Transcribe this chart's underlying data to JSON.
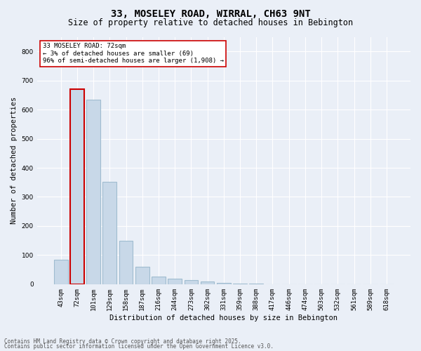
{
  "title_line1": "33, MOSELEY ROAD, WIRRAL, CH63 9NT",
  "title_line2": "Size of property relative to detached houses in Bebington",
  "xlabel": "Distribution of detached houses by size in Bebington",
  "ylabel": "Number of detached properties",
  "categories": [
    "43sqm",
    "72sqm",
    "101sqm",
    "129sqm",
    "158sqm",
    "187sqm",
    "216sqm",
    "244sqm",
    "273sqm",
    "302sqm",
    "331sqm",
    "359sqm",
    "388sqm",
    "417sqm",
    "446sqm",
    "474sqm",
    "503sqm",
    "532sqm",
    "561sqm",
    "589sqm",
    "618sqm"
  ],
  "values": [
    83,
    670,
    635,
    352,
    148,
    60,
    27,
    20,
    15,
    10,
    5,
    2,
    1,
    0,
    0,
    0,
    0,
    0,
    0,
    0,
    0
  ],
  "bar_color": "#c8d8e8",
  "bar_edge_color": "#a0bcd0",
  "highlight_bar_index": 1,
  "highlight_bar_edge_color": "#cc0000",
  "annotation_box_text": "33 MOSELEY ROAD: 72sqm\n← 3% of detached houses are smaller (69)\n96% of semi-detached houses are larger (1,908) →",
  "ylim": [
    0,
    850
  ],
  "yticks": [
    0,
    100,
    200,
    300,
    400,
    500,
    600,
    700,
    800
  ],
  "background_color": "#eaeff7",
  "plot_background_color": "#eaeff7",
  "grid_color": "#ffffff",
  "footer_line1": "Contains HM Land Registry data © Crown copyright and database right 2025.",
  "footer_line2": "Contains public sector information licensed under the Open Government Licence v3.0.",
  "title_fontsize": 10,
  "subtitle_fontsize": 8.5,
  "axis_label_fontsize": 7.5,
  "tick_fontsize": 6.5,
  "annotation_fontsize": 6.5,
  "footer_fontsize": 5.5
}
